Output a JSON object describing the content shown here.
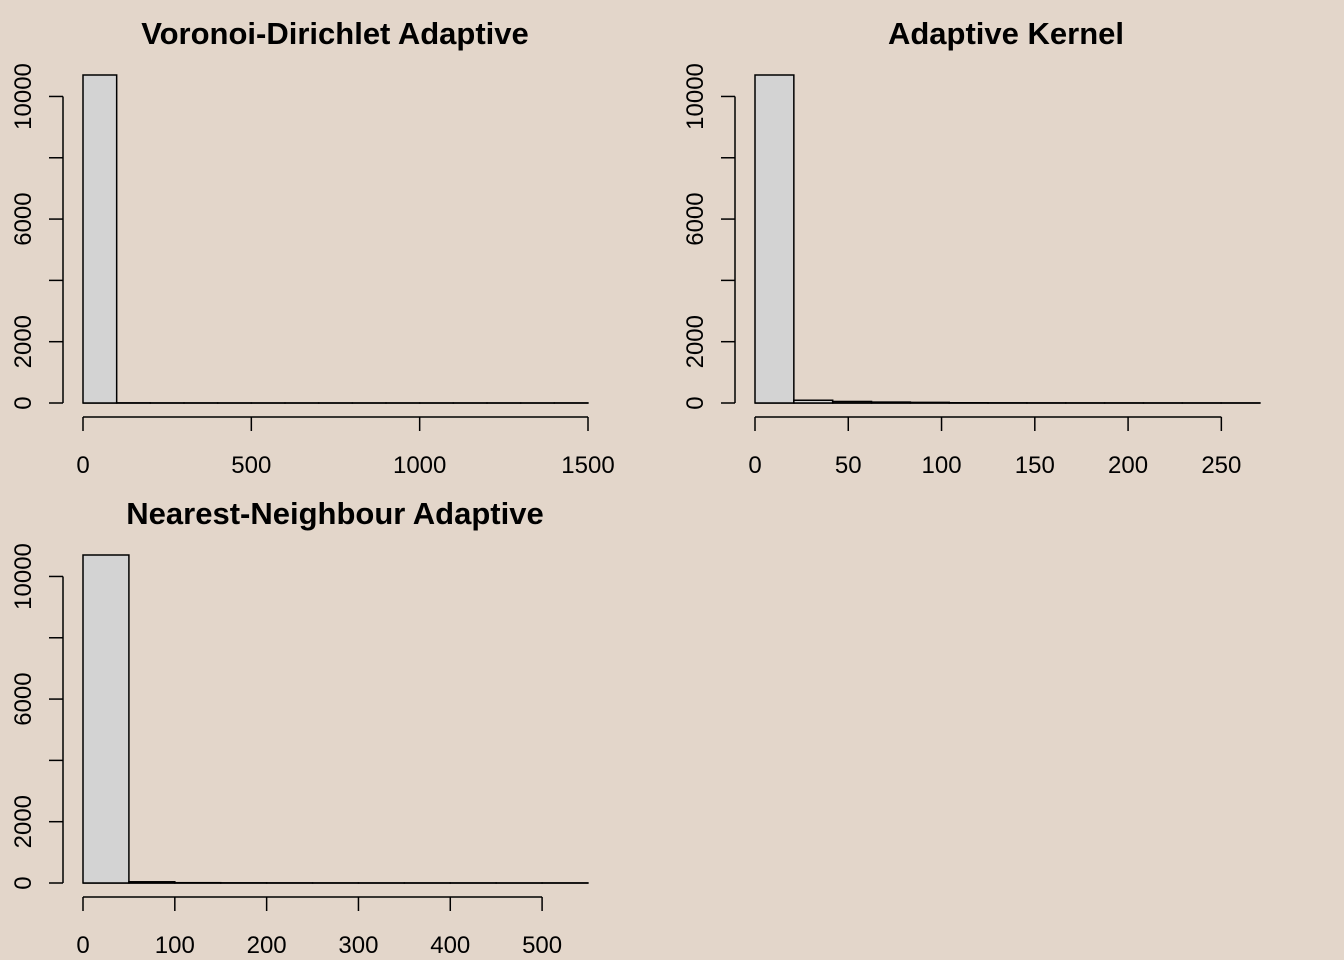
{
  "colors": {
    "background": "#E3D6CA",
    "bar_fill": "#D3D3D3",
    "bar_stroke": "#000000",
    "axis": "#000000"
  },
  "chart_data": [
    {
      "type": "bar",
      "title": "Voronoi-Dirichlet Adaptive",
      "xlabel": "",
      "ylabel": "",
      "bin_edges": [
        0,
        100,
        200,
        300,
        400,
        500,
        600,
        700,
        800,
        900,
        1000,
        1100,
        1200,
        1300,
        1400,
        1500
      ],
      "counts": [
        10700,
        3,
        1,
        1,
        0,
        0,
        0,
        0,
        0,
        0,
        0,
        0,
        0,
        0,
        1
      ],
      "xlim": [
        0,
        1500
      ],
      "ylim": [
        0,
        10700
      ],
      "x_ticks": [
        0,
        500,
        1000,
        1500
      ],
      "y_ticks": [
        0,
        2000,
        4000,
        6000,
        8000,
        10000
      ],
      "y_tick_labels": [
        "0",
        "2000",
        "",
        "6000",
        "",
        "10000"
      ],
      "grid": false
    },
    {
      "type": "bar",
      "title": "Adaptive Kernel",
      "xlabel": "",
      "ylabel": "",
      "bin_edges": [
        0,
        20,
        40,
        60,
        80,
        100,
        120,
        140,
        160,
        180,
        200,
        220,
        240,
        260
      ],
      "counts": [
        10700,
        90,
        50,
        30,
        20,
        8,
        5,
        3,
        2,
        2,
        1,
        1,
        1
      ],
      "xlim": [
        0,
        260
      ],
      "ylim": [
        0,
        10700
      ],
      "x_ticks": [
        0,
        50,
        100,
        150,
        200,
        250
      ],
      "y_ticks": [
        0,
        2000,
        4000,
        6000,
        8000,
        10000
      ],
      "y_tick_labels": [
        "0",
        "2000",
        "",
        "6000",
        "",
        "10000"
      ],
      "grid": false
    },
    {
      "type": "bar",
      "title": "Nearest-Neighbour Adaptive",
      "xlabel": "",
      "ylabel": "",
      "bin_edges": [
        0,
        50,
        100,
        150,
        200,
        250,
        300,
        350,
        400,
        450,
        500,
        550
      ],
      "counts": [
        10700,
        40,
        10,
        5,
        3,
        2,
        1,
        1,
        1,
        0,
        1
      ],
      "xlim": [
        0,
        550
      ],
      "ylim": [
        0,
        10700
      ],
      "x_ticks": [
        0,
        100,
        200,
        300,
        400,
        500
      ],
      "y_ticks": [
        0,
        2000,
        4000,
        6000,
        8000,
        10000
      ],
      "y_tick_labels": [
        "0",
        "2000",
        "",
        "6000",
        "",
        "10000"
      ],
      "grid": false
    }
  ]
}
